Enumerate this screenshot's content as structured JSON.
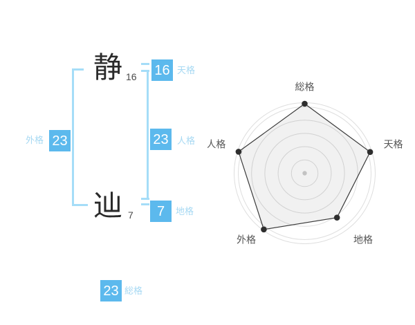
{
  "name_diagram": {
    "characters": [
      {
        "char": "静",
        "strokes": "16"
      },
      {
        "char": "辿",
        "strokes": "7"
      }
    ],
    "badges": {
      "tenkaku": {
        "value": "16",
        "label": "天格"
      },
      "jinkaku": {
        "value": "23",
        "label": "人格"
      },
      "chikaku": {
        "value": "7",
        "label": "地格"
      },
      "gaikaku": {
        "value": "23",
        "label": "外格"
      },
      "soukaku": {
        "value": "23",
        "label": "総格"
      }
    }
  },
  "colors": {
    "badge_blue": "#5cb9ed",
    "label_light_blue": "#a7d9f3",
    "bracket_blue": "#a5ddf8",
    "chart_grid": "#dedede",
    "chart_line": "#3a3a3a",
    "chart_fill": "rgba(0,0,0,0.055)",
    "chart_point": "#2e2e2e",
    "chart_center_dot": "#c2c2c2",
    "chart_label": "#555555"
  },
  "chart_data": {
    "type": "radar",
    "axes": [
      "総格",
      "天格",
      "地格",
      "外格",
      "人格"
    ],
    "values_fraction_of_max": [
      1.0,
      0.99,
      0.79,
      1.0,
      1.0
    ],
    "axis_badge_values": {
      "総格": 23,
      "天格": 16,
      "地格": 7,
      "外格": 23,
      "人格": 23
    },
    "ring_count": 5,
    "grid_shape": "circular",
    "has_axis_spokes": false,
    "legend": "none"
  }
}
